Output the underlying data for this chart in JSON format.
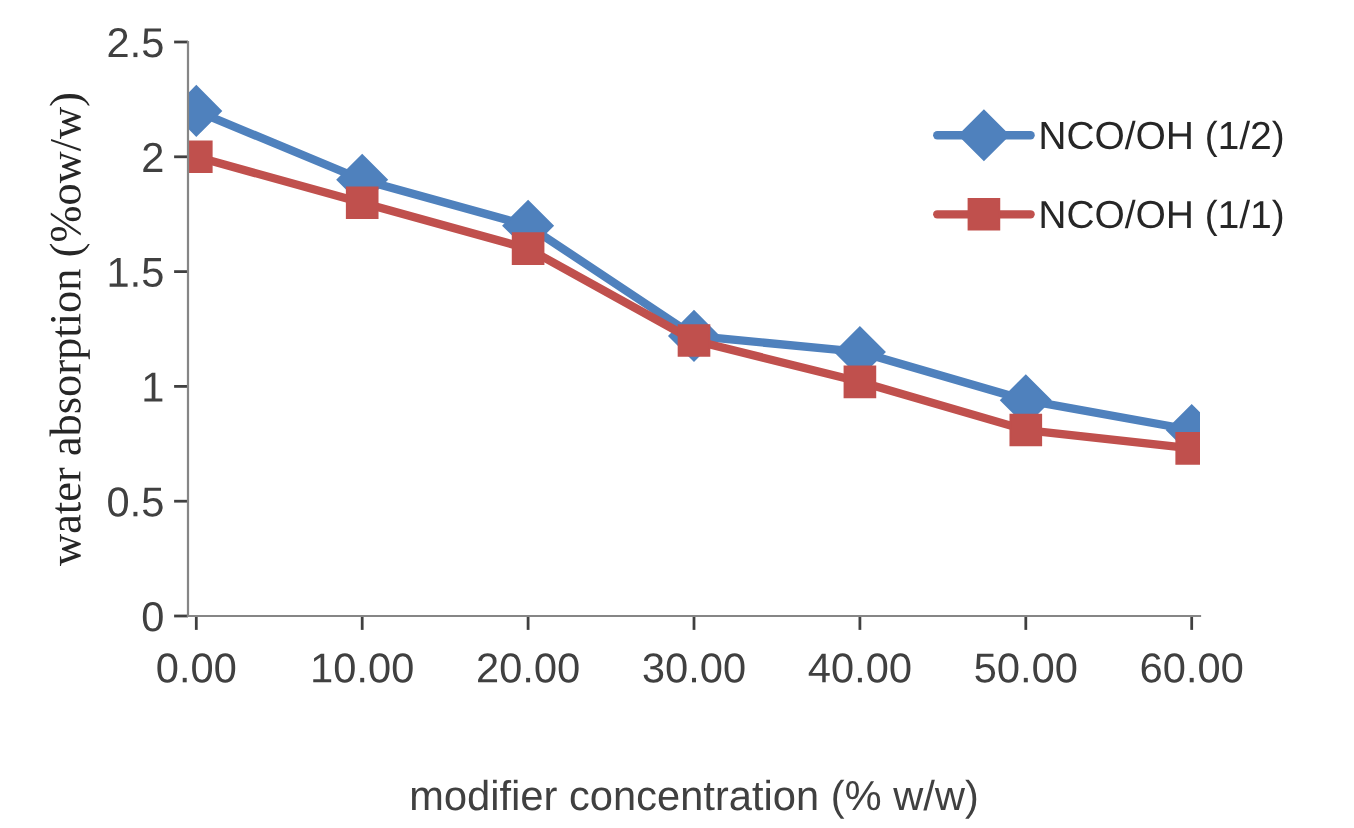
{
  "chart_data": {
    "type": "line",
    "xlabel": "modifier concentration (% w/w)",
    "ylabel": "water absorption (%ow/w)",
    "categories": [
      "0.00",
      "10.00",
      "20.00",
      "30.00",
      "40.00",
      "50.00",
      "60.00"
    ],
    "series": [
      {
        "name": "NCO/OH (1/2)",
        "color": "#4f81bd",
        "marker": "diamond",
        "values": [
          2.2,
          1.9,
          1.7,
          1.22,
          1.15,
          0.94,
          0.81
        ]
      },
      {
        "name": "NCO/OH (1/1)",
        "color": "#c0504d",
        "marker": "square",
        "values": [
          2.0,
          1.8,
          1.6,
          1.2,
          1.02,
          0.81,
          0.73
        ]
      }
    ],
    "ylim": [
      0,
      2.5
    ],
    "yticks": [
      {
        "value": 0,
        "label": "0"
      },
      0.5,
      {
        "value": 1,
        "label": "1"
      },
      1.5,
      {
        "value": 2,
        "label": "2"
      },
      2.5
    ],
    "grid": false,
    "legend": "right"
  }
}
